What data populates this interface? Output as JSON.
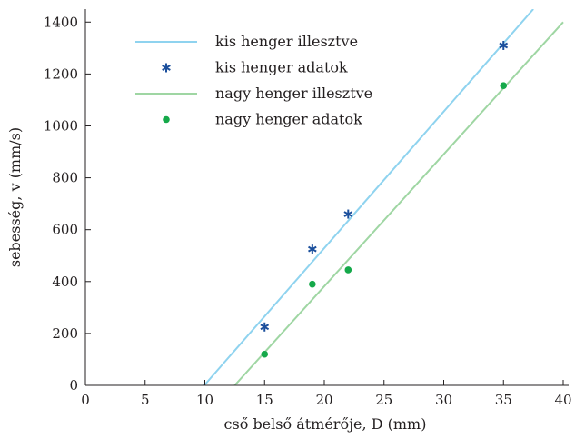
{
  "chart_data": {
    "type": "scatter",
    "xlabel": "cső belső átmérője, D (mm)",
    "ylabel": "sebesség, v (mm/s)",
    "xlim": [
      0,
      40
    ],
    "ylim": [
      0,
      1450
    ],
    "xticks": [
      0,
      5,
      10,
      15,
      20,
      25,
      30,
      35,
      40
    ],
    "yticks": [
      0,
      200,
      400,
      600,
      800,
      1000,
      1200,
      1400
    ],
    "grid": false,
    "legend_position": "top-left",
    "series": [
      {
        "name": "kis henger illesztve",
        "kind": "line",
        "color": "#8fd3ef",
        "x": [
          9.95,
          37.5
        ],
        "y": [
          0,
          1450
        ]
      },
      {
        "name": "kis henger adatok",
        "kind": "markers",
        "marker": "asterisk",
        "color": "#1b4f9c",
        "x": [
          15,
          19,
          22,
          35
        ],
        "y": [
          225,
          525,
          660,
          1310
        ]
      },
      {
        "name": "nagy henger illesztve",
        "kind": "line",
        "color": "#9fd6a3",
        "x": [
          12.5,
          40
        ],
        "y": [
          0,
          1400
        ]
      },
      {
        "name": "nagy henger adatok",
        "kind": "markers",
        "marker": "dot",
        "color": "#15a94a",
        "x": [
          15,
          19,
          22,
          35
        ],
        "y": [
          120,
          390,
          445,
          1155
        ]
      }
    ]
  }
}
